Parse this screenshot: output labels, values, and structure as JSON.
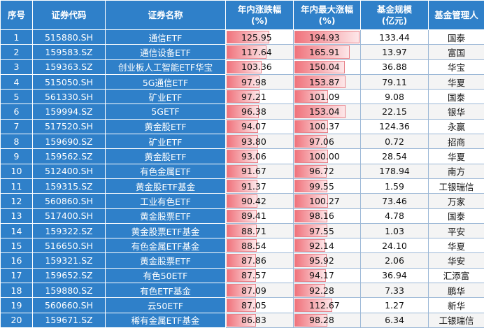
{
  "headers": [
    "序号",
    "证券代码",
    "证券名称",
    "年内涨跌幅\n(%)",
    "年内最大涨幅\n(%)",
    "基金规模\n(亿元)",
    "基金管理人"
  ],
  "bar_max": 194.93,
  "rows": [
    [
      "1",
      "515880.SH",
      "通信ETF",
      "125.95",
      "194.93",
      "133.44",
      "国泰"
    ],
    [
      "2",
      "159583.SZ",
      "通信设备ETF",
      "117.64",
      "165.91",
      "13.97",
      "富国"
    ],
    [
      "3",
      "159363.SZ",
      "创业板人工智能ETF华宝",
      "103.36",
      "150.04",
      "36.88",
      "华宝"
    ],
    [
      "4",
      "515050.SH",
      "5G通信ETF",
      "97.98",
      "153.87",
      "79.11",
      "华夏"
    ],
    [
      "5",
      "561330.SH",
      "矿业ETF",
      "97.21",
      "101.09",
      "9.08",
      "国泰"
    ],
    [
      "6",
      "159994.SZ",
      "5GETF",
      "96.38",
      "153.04",
      "22.15",
      "银华"
    ],
    [
      "7",
      "517520.SH",
      "黄金股ETF",
      "94.07",
      "100.37",
      "124.36",
      "永赢"
    ],
    [
      "8",
      "159690.SZ",
      "矿业ETF",
      "93.80",
      "97.06",
      "0.72",
      "招商"
    ],
    [
      "9",
      "159562.SZ",
      "黄金股ETF",
      "93.06",
      "100.00",
      "28.54",
      "华夏"
    ],
    [
      "10",
      "512400.SH",
      "有色金属ETF",
      "91.67",
      "96.72",
      "178.94",
      "南方"
    ],
    [
      "11",
      "159315.SZ",
      "黄金股ETF基金",
      "91.37",
      "99.55",
      "1.59",
      "工银瑞信"
    ],
    [
      "12",
      "560860.SH",
      "工业有色ETF",
      "90.42",
      "100.27",
      "73.46",
      "万家"
    ],
    [
      "13",
      "517400.SH",
      "黄金股票ETF",
      "89.41",
      "98.16",
      "4.78",
      "国泰"
    ],
    [
      "14",
      "159322.SZ",
      "黄金股票ETF基金",
      "88.71",
      "97.55",
      "1.03",
      "平安"
    ],
    [
      "15",
      "516650.SH",
      "有色金属ETF基金",
      "88.54",
      "92.14",
      "24.10",
      "华夏"
    ],
    [
      "16",
      "159321.SZ",
      "黄金股票ETF",
      "87.86",
      "95.92",
      "2.06",
      "华安"
    ],
    [
      "17",
      "159652.SZ",
      "有色50ETF",
      "87.57",
      "94.17",
      "36.94",
      "汇添富"
    ],
    [
      "18",
      "159880.SZ",
      "有色ETF基金",
      "87.09",
      "92.28",
      "7.33",
      "鹏华"
    ],
    [
      "19",
      "560660.SH",
      "云50ETF",
      "87.05",
      "112.67",
      "1.27",
      "新华"
    ],
    [
      "20",
      "159671.SZ",
      "稀有金属ETF基金",
      "86.83",
      "98.28",
      "6.34",
      "工银瑞信"
    ]
  ]
}
